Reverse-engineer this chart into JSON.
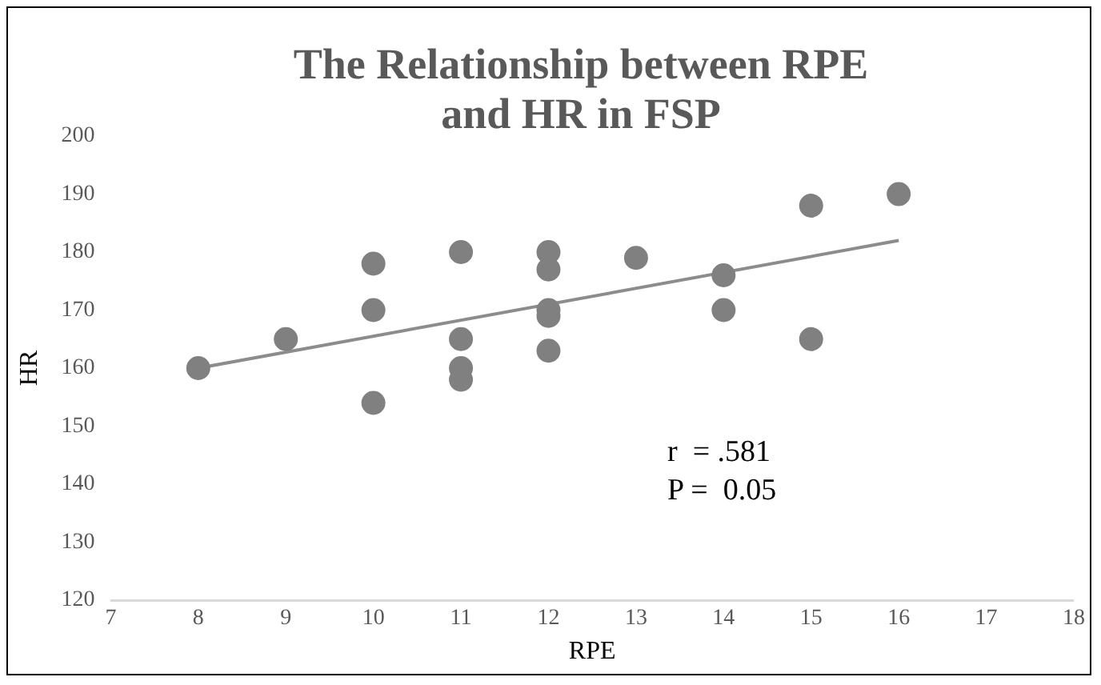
{
  "chart_data": {
    "type": "scatter",
    "title": "The Relationship between RPE and HR in FSP",
    "xlabel": "RPE",
    "ylabel": "HR",
    "x": [
      8,
      9,
      10,
      10,
      10,
      11,
      11,
      11,
      11,
      12,
      12,
      12,
      12,
      12,
      13,
      14,
      14,
      15,
      15,
      16
    ],
    "series": [
      {
        "color": "#808080",
        "marker": "circle",
        "values": [
          160,
          165,
          178,
          170,
          154,
          180,
          165,
          160,
          158,
          180,
          177,
          170,
          169,
          163,
          179,
          176,
          170,
          188,
          165,
          190
        ]
      },
      {
        "type": "line",
        "marker": "none",
        "color": "#8c8c8c",
        "x": [
          8,
          16
        ],
        "values": [
          160,
          182
        ]
      }
    ],
    "annotations": [
      "r  = .581",
      "P =  0.05"
    ],
    "xlim": [
      7,
      18
    ],
    "xticks": [
      7,
      8,
      9,
      10,
      11,
      12,
      13,
      14,
      15,
      16,
      17,
      18
    ],
    "ylim": [
      120,
      200
    ],
    "yticks": [
      120,
      130,
      140,
      150,
      160,
      170,
      180,
      190,
      200
    ],
    "grid": false,
    "legend": false
  }
}
